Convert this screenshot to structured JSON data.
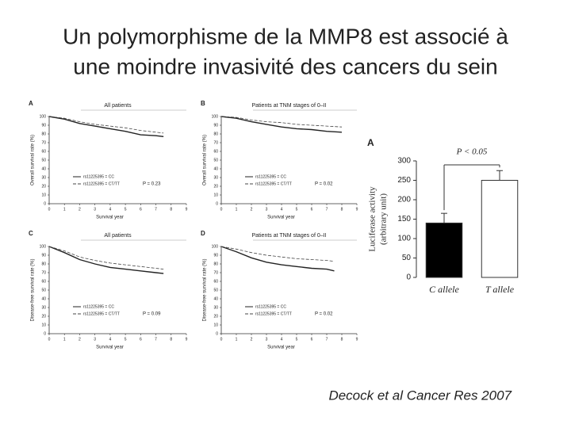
{
  "title": [
    "Un polymorphisme de la MMP8 est associé à",
    "une moindre invasivité des cancers du sein"
  ],
  "citation": "Decock et al Cancer Res 2007",
  "chart_data": [
    {
      "type": "line",
      "panel": "A",
      "title": "All patients",
      "ylabel": "Overall survival rate (%)",
      "xlabel": "Survival year",
      "x": [
        0,
        1,
        2,
        3,
        4,
        5,
        6,
        7,
        7.5
      ],
      "xlim": [
        0,
        9
      ],
      "ylim": [
        0,
        100
      ],
      "xticks": [
        0,
        1,
        2,
        3,
        4,
        5,
        6,
        7,
        8,
        9
      ],
      "yticks": [
        0,
        10,
        20,
        30,
        40,
        50,
        60,
        70,
        80,
        90,
        100
      ],
      "series": [
        {
          "name": "rs11225395 = CC",
          "color": "#222222",
          "style": "solid",
          "values": [
            100,
            97,
            92,
            89,
            86,
            83,
            79,
            78,
            77
          ]
        },
        {
          "name": "rs11225395 = CT/TT",
          "color": "#444444",
          "style": "dashed",
          "values": [
            100,
            98,
            94,
            91,
            89,
            87,
            84,
            82,
            81
          ]
        }
      ],
      "annotation": "P = 0.23"
    },
    {
      "type": "line",
      "panel": "B",
      "title": "Patients at TNM stages of 0–II",
      "ylabel": "Overall survival rate (%)",
      "xlabel": "Survival year",
      "x": [
        0,
        1,
        2,
        3,
        4,
        5,
        6,
        7,
        8
      ],
      "xlim": [
        0,
        9
      ],
      "ylim": [
        0,
        100
      ],
      "xticks": [
        0,
        1,
        2,
        3,
        4,
        5,
        6,
        7,
        8,
        9
      ],
      "yticks": [
        0,
        10,
        20,
        30,
        40,
        50,
        60,
        70,
        80,
        90,
        100
      ],
      "series": [
        {
          "name": "rs11225395 = CC",
          "color": "#222222",
          "style": "solid",
          "values": [
            100,
            98,
            94,
            91,
            88,
            86,
            85,
            83,
            82
          ]
        },
        {
          "name": "rs11225395 = CT/TT",
          "color": "#444444",
          "style": "dashed",
          "values": [
            100,
            99,
            96,
            94,
            93,
            91,
            90,
            89,
            88
          ]
        }
      ],
      "annotation": "P = 0.02"
    },
    {
      "type": "line",
      "panel": "C",
      "title": "All patients",
      "ylabel": "Disease-free survival rate (%)",
      "xlabel": "Survival year",
      "x": [
        0,
        1,
        2,
        3,
        4,
        5,
        6,
        7,
        7.5
      ],
      "xlim": [
        0,
        9
      ],
      "ylim": [
        0,
        100
      ],
      "xticks": [
        0,
        1,
        2,
        3,
        4,
        5,
        6,
        7,
        8,
        9
      ],
      "yticks": [
        0,
        10,
        20,
        30,
        40,
        50,
        60,
        70,
        80,
        90,
        100
      ],
      "series": [
        {
          "name": "rs11225395 = CC",
          "color": "#222222",
          "style": "solid",
          "values": [
            100,
            93,
            85,
            80,
            76,
            74,
            72,
            70,
            69
          ]
        },
        {
          "name": "rs11225395 = CT/TT",
          "color": "#444444",
          "style": "dashed",
          "values": [
            100,
            95,
            88,
            84,
            81,
            79,
            77,
            75,
            74
          ]
        }
      ],
      "annotation": "P = 0.09"
    },
    {
      "type": "line",
      "panel": "D",
      "title": "Patients at TNM stages of 0–II",
      "ylabel": "Disease-free survival rate (%)",
      "xlabel": "Survival year",
      "x": [
        0,
        1,
        2,
        3,
        4,
        5,
        6,
        7,
        7.5
      ],
      "xlim": [
        0,
        9
      ],
      "ylim": [
        0,
        100
      ],
      "xticks": [
        0,
        1,
        2,
        3,
        4,
        5,
        6,
        7,
        8,
        9
      ],
      "yticks": [
        0,
        10,
        20,
        30,
        40,
        50,
        60,
        70,
        80,
        90,
        100
      ],
      "series": [
        {
          "name": "rs11225395 = CC",
          "color": "#222222",
          "style": "solid",
          "values": [
            100,
            94,
            87,
            82,
            79,
            77,
            75,
            74,
            72
          ]
        },
        {
          "name": "rs11225395 = CT/TT",
          "color": "#444444",
          "style": "dashed",
          "values": [
            100,
            97,
            93,
            90,
            88,
            86,
            85,
            84,
            83
          ]
        }
      ],
      "annotation": "P = 0.02"
    },
    {
      "type": "bar",
      "panel": "A",
      "ylabel": [
        "Luciferase activity",
        "(arbitrary unit)"
      ],
      "categories": [
        "C allele",
        "T allele"
      ],
      "values": [
        140,
        250
      ],
      "errors": [
        25,
        25
      ],
      "colors": [
        "#000000",
        "#ffffff"
      ],
      "ylim": [
        0,
        300
      ],
      "yticks": [
        0,
        50,
        100,
        150,
        200,
        250,
        300
      ],
      "annotation": "P < 0.05"
    }
  ]
}
